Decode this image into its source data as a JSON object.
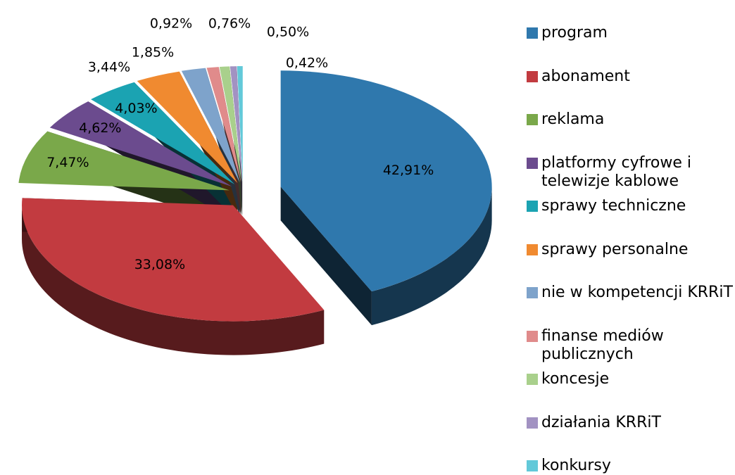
{
  "chart_data": {
    "type": "pie3d",
    "categories": [
      "program",
      "abonament",
      "reklama",
      "platformy cyfrowe i telewizje kablowe",
      "sprawy techniczne",
      "sprawy personalne",
      "nie w kompetencji KRRiT",
      "finanse mediów publicznych",
      "koncesje",
      "działania KRRiT",
      "konkursy"
    ],
    "values": [
      42.91,
      33.08,
      7.47,
      4.62,
      4.03,
      3.44,
      1.85,
      0.92,
      0.76,
      0.5,
      0.42
    ],
    "value_labels": [
      "42,91%",
      "33,08%",
      "7,47%",
      "4,62%",
      "4,03%",
      "3,44%",
      "1,85%",
      "0,92%",
      "0,76%",
      "0,50%",
      "0,42%"
    ],
    "colors": [
      "#2f78ad",
      "#c23b40",
      "#7aa84a",
      "#6b4b8e",
      "#1ba3b2",
      "#f08a30",
      "#7ea3cb",
      "#e08b8b",
      "#a9d08c",
      "#a292c2",
      "#62c9d9"
    ],
    "legend": "right"
  }
}
